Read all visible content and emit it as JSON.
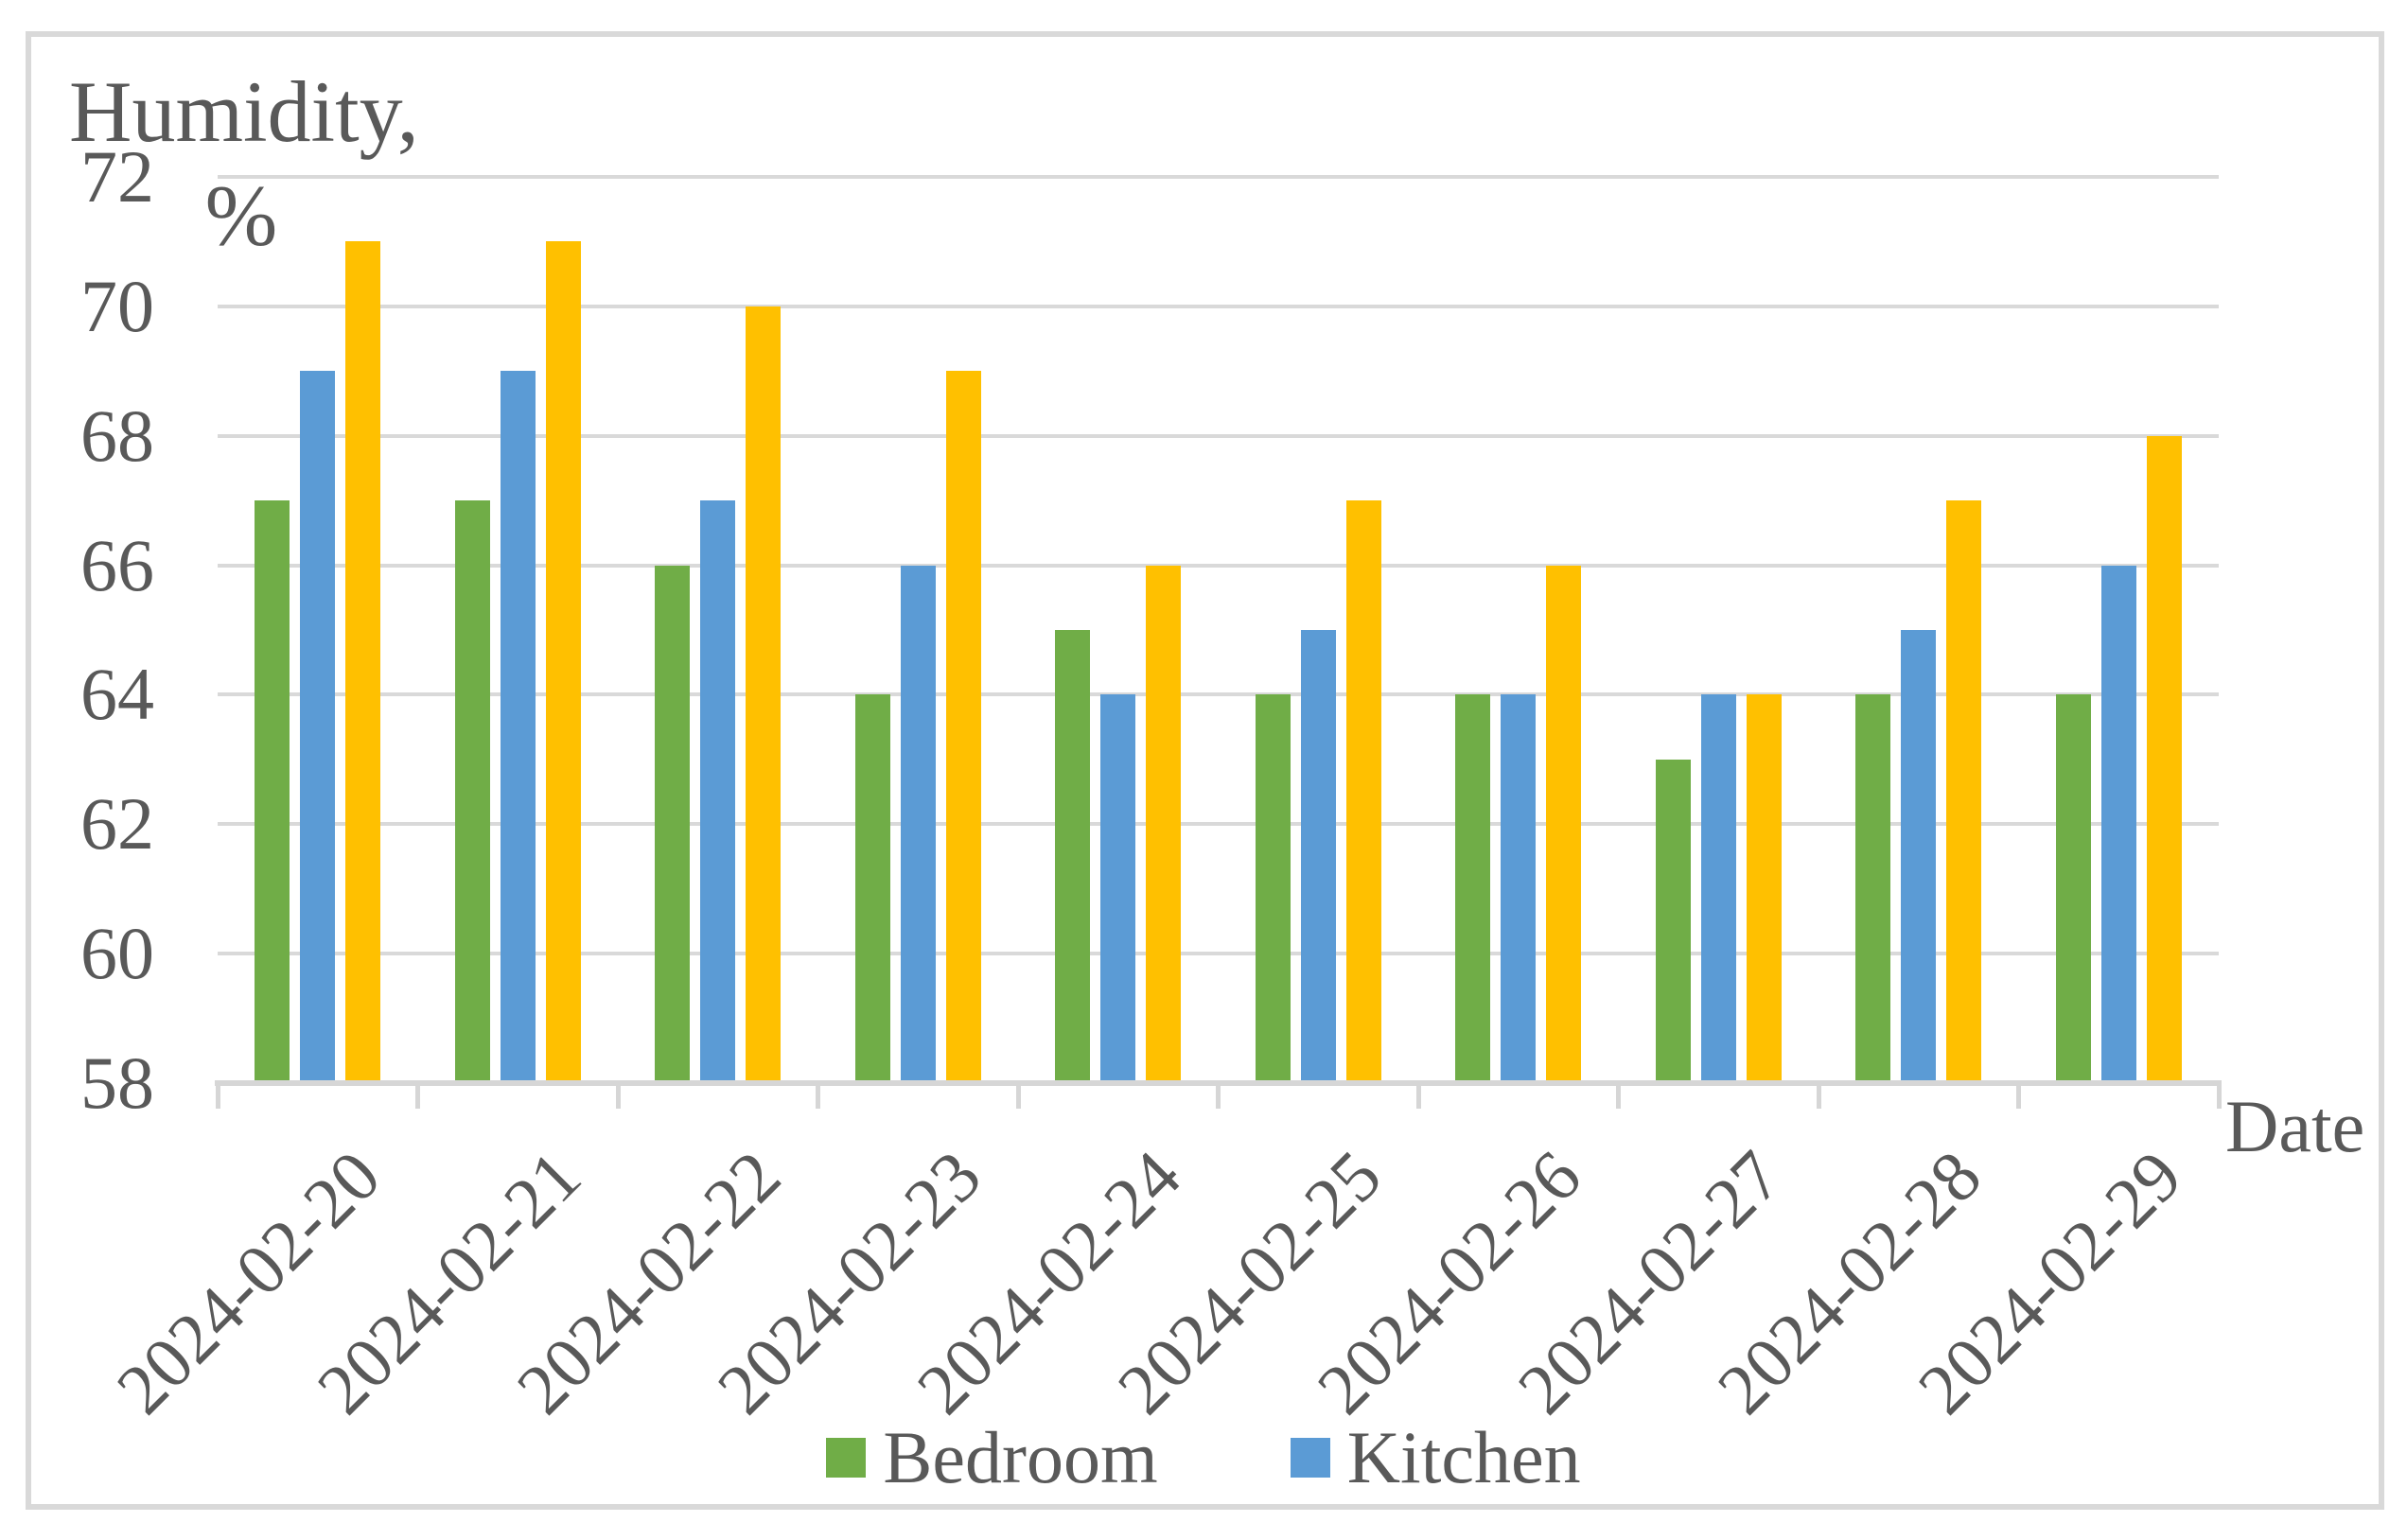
{
  "chart": {
    "title_line1": "Humidity,",
    "title_line2": "%",
    "x_axis_label": "Date",
    "legend": [
      {
        "label": "Bedroom",
        "color": "#70AD47"
      },
      {
        "label": "Kitchen",
        "color": "#5B9BD5"
      }
    ]
  },
  "chart_data": {
    "type": "bar",
    "title": "Humidity, %",
    "xlabel": "Date",
    "ylabel": "Humidity, %",
    "ylim": [
      58,
      72
    ],
    "ytick_step": 2,
    "yticks": [
      58,
      60,
      62,
      64,
      66,
      68,
      70,
      72
    ],
    "grid": true,
    "legend_position": "bottom",
    "categories": [
      "2024-02-20",
      "2024-02-21",
      "2024-02-22",
      "2024-02-23",
      "2024-02-24",
      "2024-02-25",
      "2024-02-26",
      "2024-02-27",
      "2024-02-28",
      "2024-02-29"
    ],
    "series": [
      {
        "name": "Bedroom",
        "color": "#70AD47",
        "values": [
          67,
          67,
          66,
          64,
          65,
          64,
          64,
          63,
          64,
          64
        ]
      },
      {
        "name": "Kitchen",
        "color": "#5B9BD5",
        "values": [
          69,
          69,
          67,
          66,
          64,
          65,
          64,
          64,
          65,
          66
        ]
      },
      {
        "name": "",
        "color": "#FFC000",
        "values": [
          71,
          71,
          70,
          69,
          66,
          67,
          66,
          64,
          67,
          68
        ]
      }
    ]
  },
  "colors": {
    "text": "#595959",
    "gridline": "#D9D9D9",
    "axis_line": "#D6D6D6",
    "frame_border": "#D9D9D9",
    "background": "#FFFFFF"
  }
}
